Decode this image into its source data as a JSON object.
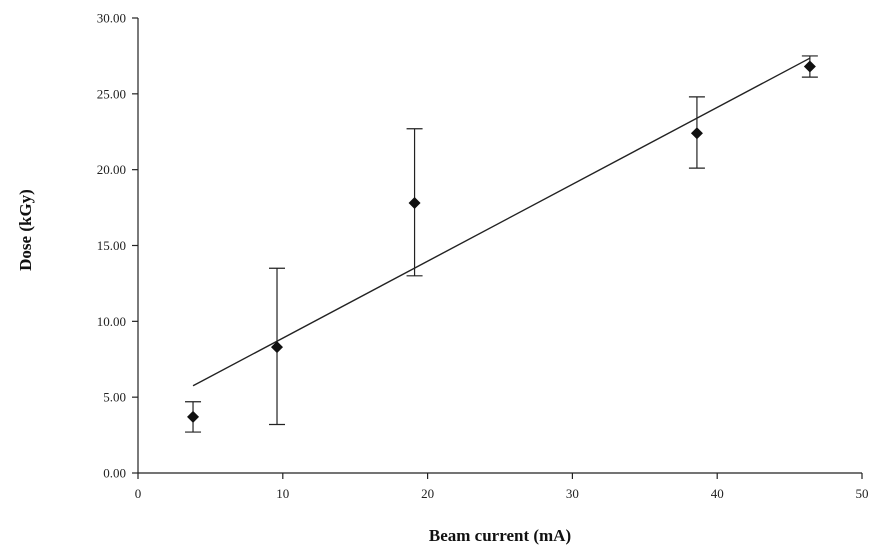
{
  "chart_data": {
    "type": "scatter",
    "title": "",
    "xlabel": "Beam current (mA)",
    "ylabel": "Dose (kGy)",
    "xlim": [
      0,
      50
    ],
    "ylim": [
      0,
      30
    ],
    "x_ticks": [
      "0",
      "10",
      "20",
      "30",
      "40",
      "50"
    ],
    "y_ticks": [
      "0.00",
      "5.00",
      "10.00",
      "15.00",
      "20.00",
      "25.00",
      "30.00"
    ],
    "grid": false,
    "legend": "none",
    "marker": "diamond",
    "marker_color": "#111111",
    "series": [
      {
        "points": [
          {
            "x": 3.8,
            "y": 3.7,
            "err_low": 2.7,
            "err_high": 4.7
          },
          {
            "x": 9.6,
            "y": 8.3,
            "err_low": 3.2,
            "err_high": 13.5
          },
          {
            "x": 19.1,
            "y": 17.8,
            "err_low": 13.0,
            "err_high": 22.7
          },
          {
            "x": 38.6,
            "y": 22.4,
            "err_low": 20.1,
            "err_high": 24.8
          },
          {
            "x": 46.4,
            "y": 26.8,
            "err_low": 26.1,
            "err_high": 27.5
          }
        ]
      }
    ],
    "trendline": {
      "type": "linear",
      "x_start": 3.8,
      "y_start": 5.75,
      "x_end": 46.4,
      "y_end": 27.35
    }
  }
}
